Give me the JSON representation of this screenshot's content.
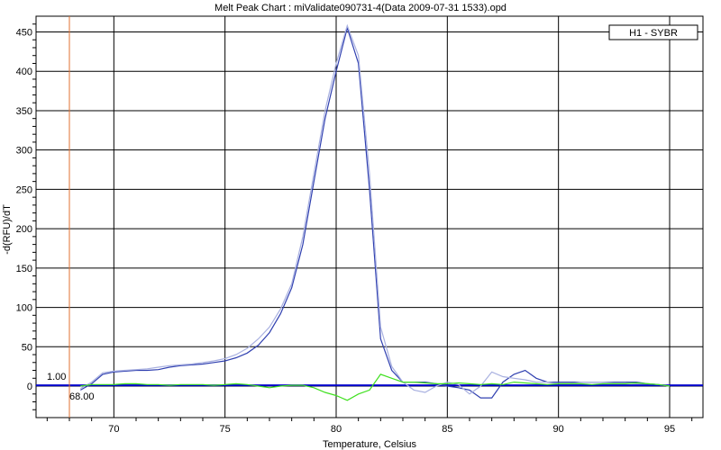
{
  "chart_data": {
    "type": "line",
    "title": "Melt Peak Chart : miValidate090731-4(Data 2009-07-31 1533).opd",
    "xlabel": "Temperature, Celsius",
    "ylabel": "-d(RFU)/dT",
    "xlim": [
      66.5,
      96.5
    ],
    "ylim": [
      -40,
      470
    ],
    "x_ticks": [
      70,
      75,
      80,
      85,
      90,
      95
    ],
    "y_ticks": [
      0,
      50,
      100,
      150,
      200,
      250,
      300,
      350,
      400,
      450
    ],
    "grid": true,
    "legend": {
      "label": "H1 - SYBR",
      "position": "top-right"
    },
    "threshold": {
      "value": 1.0,
      "label": "1.00",
      "color": "#0000cc"
    },
    "start_marker": {
      "x": 68.0,
      "label": "68.00",
      "color": "#e07030"
    },
    "series": [
      {
        "color": "#3040b0",
        "x": [
          68.5,
          69,
          69.5,
          70,
          70.5,
          71,
          71.5,
          72,
          72.5,
          73,
          73.5,
          74,
          74.5,
          75,
          75.5,
          76,
          76.5,
          77,
          77.5,
          78,
          78.5,
          79,
          79.5,
          80,
          80.5,
          81,
          81.5,
          82,
          82.5,
          83,
          83.5,
          84,
          84.5,
          85,
          85.5,
          86,
          86.5,
          87,
          87.5,
          88,
          88.5,
          89,
          89.5,
          90,
          90.5,
          91,
          91.5,
          92,
          92.5,
          93,
          93.5,
          94,
          94.5,
          95
        ],
        "y": [
          -5,
          3,
          15,
          18,
          19,
          20,
          20,
          21,
          24,
          26,
          27,
          28,
          30,
          32,
          36,
          42,
          52,
          68,
          92,
          125,
          180,
          260,
          340,
          400,
          455,
          410,
          250,
          60,
          20,
          5,
          5,
          5,
          3,
          0,
          -2,
          -5,
          -15,
          -15,
          5,
          15,
          20,
          10,
          5,
          5,
          5,
          5,
          5,
          5,
          5,
          5,
          5,
          3,
          2,
          0
        ]
      },
      {
        "color": "#a8b0e0",
        "x": [
          68.5,
          69,
          69.5,
          70,
          70.5,
          71,
          71.5,
          72,
          72.5,
          73,
          73.5,
          74,
          74.5,
          75,
          75.5,
          76,
          76.5,
          77,
          77.5,
          78,
          78.5,
          79,
          79.5,
          80,
          80.5,
          81,
          81.5,
          82,
          82.5,
          83,
          83.5,
          84,
          84.5,
          85,
          85.5,
          86,
          86.5,
          87,
          87.5,
          88,
          88.5,
          89,
          89.5,
          90,
          90.5,
          91,
          91.5,
          92,
          92.5,
          93,
          93.5,
          94,
          94.5,
          95
        ],
        "y": [
          -3,
          5,
          17,
          19,
          20,
          21,
          22,
          24,
          26,
          27,
          28,
          30,
          32,
          35,
          40,
          48,
          60,
          75,
          98,
          130,
          190,
          270,
          350,
          410,
          458,
          420,
          270,
          75,
          25,
          5,
          -5,
          -8,
          0,
          5,
          2,
          -10,
          0,
          18,
          12,
          10,
          8,
          5,
          5,
          3,
          3,
          5,
          5,
          5,
          4,
          4,
          3,
          3,
          2,
          0
        ]
      },
      {
        "color": "#40e020",
        "x": [
          68.5,
          69,
          69.5,
          70,
          70.5,
          71,
          71.5,
          72,
          72.5,
          73,
          73.5,
          74,
          74.5,
          75,
          75.5,
          76,
          76.5,
          77,
          77.5,
          78,
          78.5,
          79,
          79.5,
          80,
          80.5,
          81,
          81.5,
          82,
          82.5,
          83,
          83.5,
          84,
          84.5,
          85,
          85.5,
          86,
          86.5,
          87,
          87.5,
          88,
          88.5,
          89,
          89.5,
          90,
          90.5,
          91,
          91.5,
          92,
          92.5,
          93,
          93.5,
          94,
          94.5,
          95
        ],
        "y": [
          0,
          2,
          2,
          2,
          3,
          3,
          2,
          2,
          1,
          2,
          2,
          2,
          1,
          2,
          3,
          2,
          0,
          -2,
          0,
          1,
          1,
          -2,
          -8,
          -12,
          -18,
          -10,
          -5,
          15,
          10,
          5,
          5,
          4,
          3,
          3,
          4,
          3,
          2,
          3,
          2,
          5,
          4,
          3,
          2,
          3,
          3,
          3,
          2,
          3,
          3,
          3,
          4,
          3,
          2,
          0
        ]
      }
    ]
  }
}
